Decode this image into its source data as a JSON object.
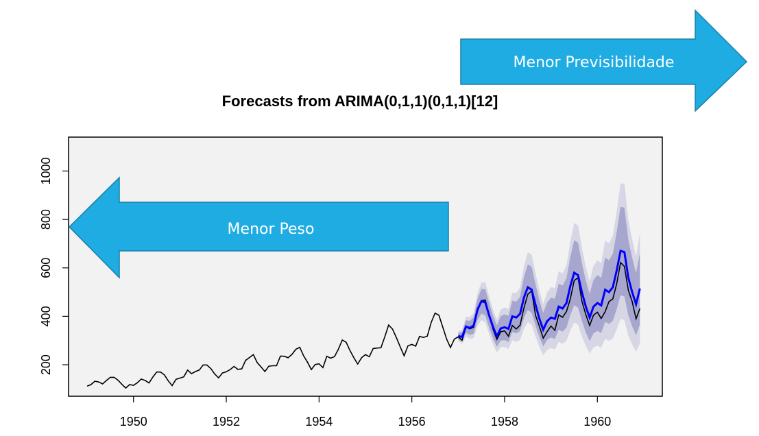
{
  "chart_data": {
    "type": "line",
    "title": "Forecasts from ARIMA(0,1,1)(0,1,1)[12]",
    "xlabel": "",
    "ylabel": "",
    "xlim": [
      1948.6,
      1961.4
    ],
    "ylim": [
      70,
      1140
    ],
    "x_ticks": [
      1950,
      1952,
      1954,
      1956,
      1958,
      1960
    ],
    "y_ticks": [
      200,
      400,
      600,
      800,
      1000
    ],
    "grid": false,
    "history_start": 1949.0,
    "history_step": 0.08333333,
    "history": [
      112,
      118,
      132,
      129,
      121,
      135,
      148,
      148,
      136,
      119,
      104,
      118,
      115,
      126,
      141,
      135,
      125,
      149,
      170,
      170,
      158,
      133,
      114,
      140,
      145,
      150,
      178,
      163,
      172,
      178,
      199,
      199,
      184,
      162,
      146,
      166,
      171,
      180,
      193,
      181,
      183,
      218,
      230,
      242,
      209,
      191,
      172,
      194,
      196,
      196,
      236,
      235,
      229,
      243,
      264,
      272,
      237,
      211,
      180,
      201,
      204,
      188,
      235,
      227,
      234,
      264,
      302,
      293,
      259,
      229,
      203,
      229,
      242,
      233,
      267,
      269,
      270,
      315,
      364,
      347,
      312,
      274,
      237,
      278,
      284,
      277,
      317,
      313,
      318,
      374,
      413,
      405,
      355,
      306,
      271,
      306
    ],
    "forecast_start": 1957.0,
    "forecast_step": 0.08333333,
    "actual": [
      315,
      301,
      356,
      348,
      355,
      422,
      465,
      467,
      404,
      347,
      305,
      336,
      340,
      318,
      362,
      348,
      363,
      435,
      491,
      505,
      404,
      359,
      310,
      337,
      360,
      342,
      406,
      396,
      420,
      472,
      548,
      559,
      463,
      407,
      362,
      405,
      417,
      391,
      419,
      461,
      472,
      535,
      622,
      606,
      508,
      461,
      390,
      432
    ],
    "forecast": [
      318,
      315,
      358,
      352,
      362,
      428,
      462,
      458,
      404,
      356,
      318,
      350,
      355,
      348,
      400,
      395,
      410,
      478,
      520,
      510,
      447,
      390,
      345,
      380,
      395,
      390,
      440,
      432,
      455,
      525,
      580,
      570,
      500,
      440,
      395,
      440,
      455,
      445,
      510,
      500,
      520,
      590,
      670,
      665,
      560,
      500,
      450,
      515
    ],
    "colors": {
      "panel": "#f2f2f2",
      "history_line": "#000000",
      "forecast_line": "#0000ff",
      "band80": "#a6a6cf",
      "band95": "#d6d6e4",
      "arrow": "#1eace2",
      "arrow_stroke": "#1a7fa6"
    }
  },
  "annotations": {
    "left_arrow": "Menor Peso",
    "right_arrow": "Menor Previsibilidade"
  }
}
